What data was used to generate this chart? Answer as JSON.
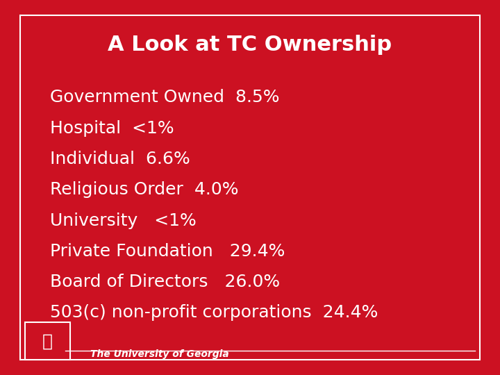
{
  "title": "A Look at TC Ownership",
  "background_color": "#CC1122",
  "inner_bg_color": "#BB0011",
  "text_color": "#FFFFFF",
  "border_color": "#FFFFFF",
  "title_fontsize": 22,
  "body_fontsize": 18,
  "footer_text": "The University of Georgia",
  "footer_fontsize": 10,
  "lines": [
    "Government Owned  8.5%",
    "Hospital  <1%",
    "Individual  6.6%",
    "Religious Order  4.0%",
    "University   <1%",
    "Private Foundation   29.4%",
    "Board of Directors   26.0%",
    "503(c) non-profit corporations  24.4%"
  ]
}
